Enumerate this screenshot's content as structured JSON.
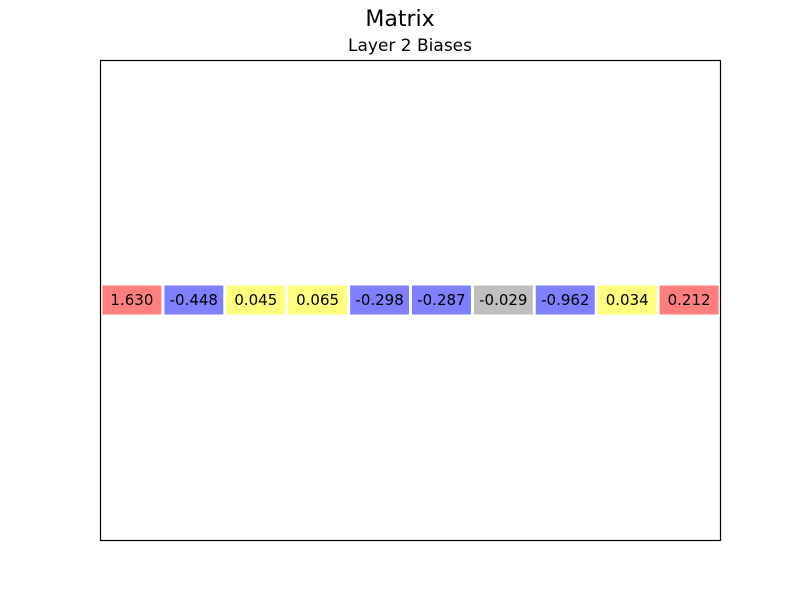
{
  "title": "Matrix",
  "subtitle": "Layer 2 Biases",
  "chart_data": {
    "type": "table",
    "title": "Matrix",
    "subtitle": "Layer 2 Biases",
    "xlabel": "",
    "ylabel": "",
    "grid": false,
    "legend": "none",
    "rows": 1,
    "columns": 10,
    "values": [
      1.63,
      -0.448,
      0.045,
      0.065,
      -0.298,
      -0.287,
      -0.029,
      -0.962,
      0.034,
      0.212
    ],
    "labels": [
      "1.630",
      "-0.448",
      "0.045",
      "0.065",
      "-0.298",
      "-0.287",
      "-0.029",
      "-0.962",
      "0.034",
      "0.212"
    ],
    "colors": [
      "#ff7f7f",
      "#7f7fff",
      "#ffff7f",
      "#ffff7f",
      "#7f7fff",
      "#7f7fff",
      "#bfbfbf",
      "#7f7fff",
      "#ffff7f",
      "#ff7f7f"
    ]
  }
}
